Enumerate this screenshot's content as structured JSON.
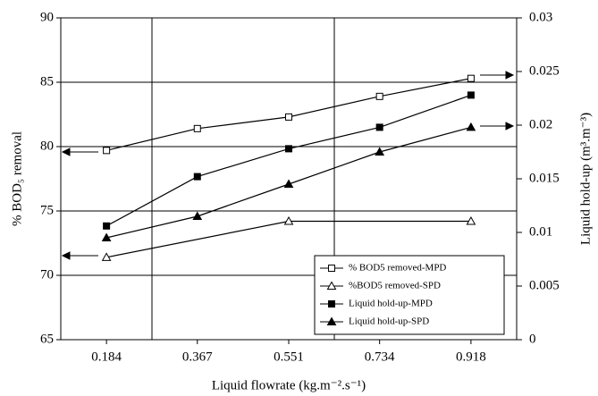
{
  "chart_data": {
    "type": "line",
    "xlabel": "Liquid flowrate (kg.m⁻².s⁻¹)",
    "ylabel": "% BOD₅ removal",
    "y2label": "Liquid hold-up (m³.m⁻³)",
    "xlim": [
      0.092,
      1.01
    ],
    "xticks": [
      0.184,
      0.367,
      0.551,
      0.734,
      0.918
    ],
    "ylim": [
      65,
      90
    ],
    "yticks": [
      65,
      70,
      75,
      80,
      85,
      90
    ],
    "y2lim": [
      0,
      0.03
    ],
    "y2ticks": [
      0,
      0.005,
      0.01,
      0.015,
      0.02,
      0.025,
      0.03
    ],
    "grid": true,
    "legend": "lower right",
    "series": [
      {
        "name": "% BOD5 removed-MPD",
        "color": "#000000",
        "marker": "square-open",
        "x": [
          0.184,
          0.367,
          0.551,
          0.734,
          0.918
        ],
        "values": [
          79.7,
          81.4,
          82.3,
          83.9,
          85.3
        ]
      },
      {
        "name": "%BOD5 removed-SPD",
        "color": "#000000",
        "marker": "triangle-open",
        "x": [
          0.184,
          0.551,
          0.918
        ],
        "values": [
          71.4,
          74.2,
          74.2
        ]
      },
      {
        "name": "Liquid hold-up-MPD",
        "color": "#000000",
        "marker": "square",
        "axis": "y2",
        "x": [
          0.184,
          0.367,
          0.551,
          0.734,
          0.918
        ],
        "values": [
          0.0106,
          0.0152,
          0.0178,
          0.0198,
          0.0228
        ]
      },
      {
        "name": "Liquid hold-up-SPD",
        "color": "#000000",
        "marker": "triangle",
        "axis": "y2",
        "x": [
          0.184,
          0.367,
          0.551,
          0.734,
          0.918
        ],
        "values": [
          0.0095,
          0.0115,
          0.0145,
          0.0175,
          0.0198
        ]
      }
    ]
  }
}
